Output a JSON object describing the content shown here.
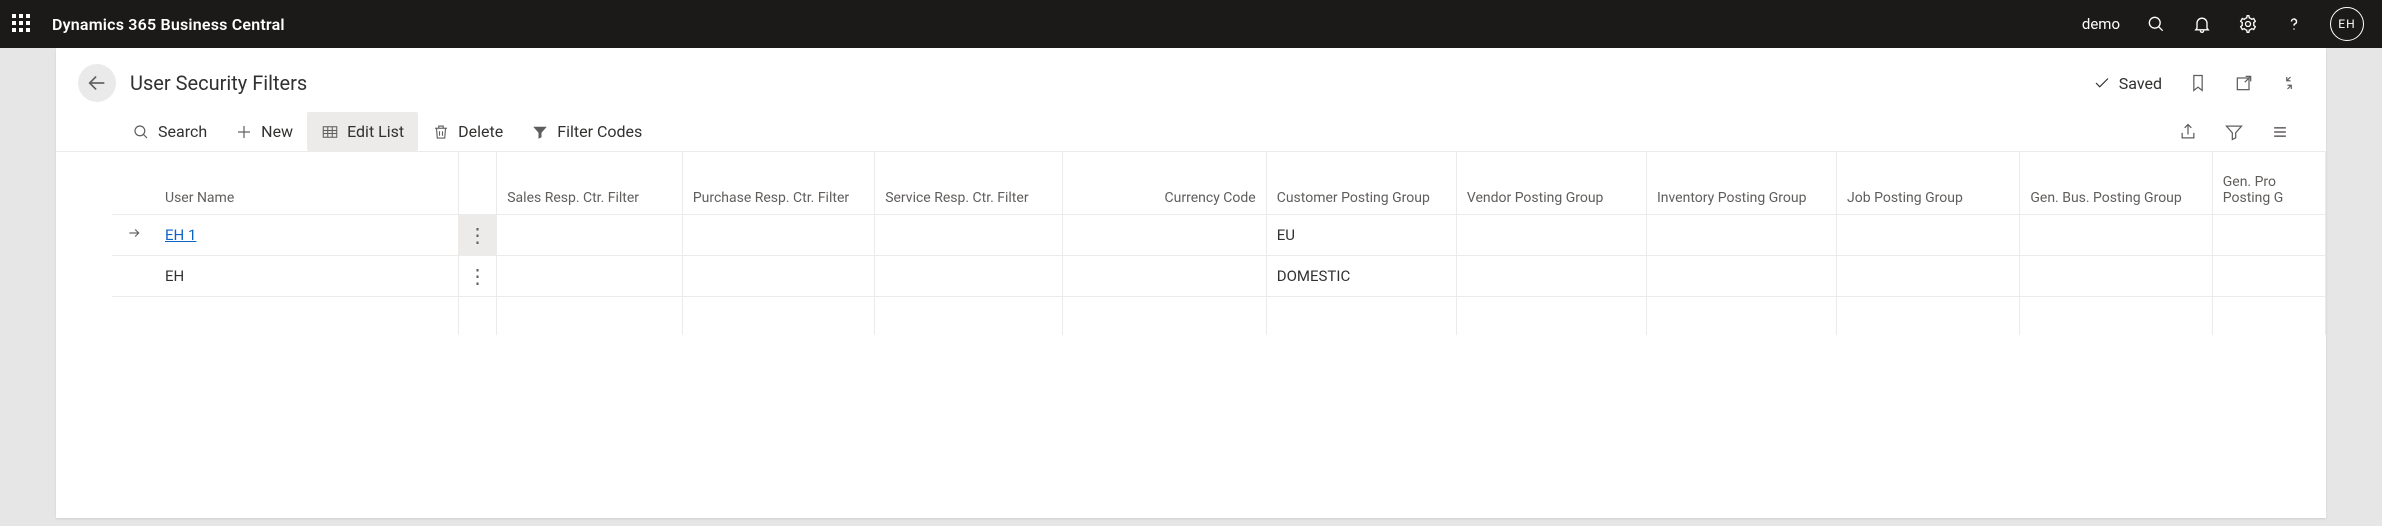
{
  "topbar": {
    "app_title": "Dynamics 365 Business Central",
    "environment": "demo",
    "avatar_initials": "EH"
  },
  "page": {
    "title": "User Security Filters",
    "saved_label": "Saved"
  },
  "commands": {
    "search": "Search",
    "new": "New",
    "edit_list": "Edit List",
    "delete": "Delete",
    "filter_codes": "Filter Codes"
  },
  "columns": {
    "user_name": "User Name",
    "sales_resp": "Sales Resp. Ctr. Filter",
    "purchase_resp": "Purchase Resp. Ctr. Filter",
    "service_resp": "Service Resp. Ctr. Filter",
    "currency_code": "Currency Code",
    "customer_pg": "Customer Posting Group",
    "vendor_pg": "Vendor Posting Group",
    "inventory_pg": "Inventory Posting Group",
    "job_pg": "Job Posting Group",
    "gen_bus_pg": "Gen. Bus. Posting Group",
    "gen_prod_pg": "Gen. Prod. Posting Group"
  },
  "rows": [
    {
      "user_name": "EH 1",
      "is_link": true,
      "selected": true,
      "sales_resp": "",
      "purchase_resp": "",
      "service_resp": "",
      "currency_code": "",
      "customer_pg": "EU",
      "vendor_pg": "",
      "inventory_pg": "",
      "job_pg": "",
      "gen_bus_pg": "",
      "gen_prod_pg": ""
    },
    {
      "user_name": "EH",
      "is_link": false,
      "selected": false,
      "sales_resp": "",
      "purchase_resp": "",
      "service_resp": "",
      "currency_code": "",
      "customer_pg": "DOMESTIC",
      "vendor_pg": "",
      "inventory_pg": "",
      "job_pg": "",
      "gen_bus_pg": "",
      "gen_prod_pg": ""
    }
  ]
}
